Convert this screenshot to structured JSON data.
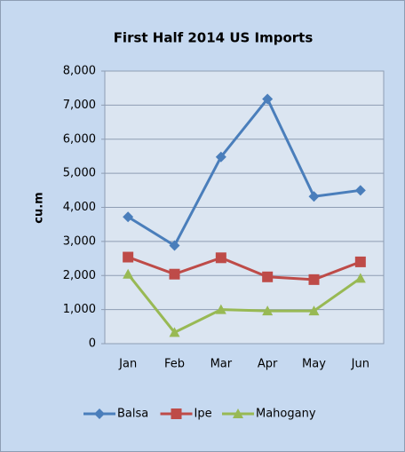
{
  "chart_data": {
    "type": "line",
    "title": "First Half 2014 US Imports",
    "y_label": "cu.m",
    "categories": [
      "Jan",
      "Feb",
      "Mar",
      "Apr",
      "May",
      "Jun"
    ],
    "series": [
      {
        "name": "Balsa",
        "color": "#4a7ebb",
        "marker": "diamond",
        "values": [
          3720,
          2880,
          5480,
          7180,
          4320,
          4500
        ]
      },
      {
        "name": "Ipe",
        "color": "#be4b48",
        "marker": "square",
        "values": [
          2540,
          2040,
          2520,
          1960,
          1880,
          2400
        ]
      },
      {
        "name": "Mahogany",
        "color": "#98b954",
        "marker": "triangle",
        "values": [
          2040,
          330,
          1000,
          960,
          960,
          1920
        ]
      }
    ],
    "ylim": [
      0,
      8000
    ],
    "yticks": [
      0,
      {
        "value": 1000,
        "label": "1,000"
      },
      {
        "value": 2000,
        "label": "2,000"
      },
      {
        "value": 3000,
        "label": "3,000"
      },
      {
        "value": 4000,
        "label": "4,000"
      },
      {
        "value": 5000,
        "label": "5,000"
      },
      {
        "value": 6000,
        "label": "6,000"
      },
      {
        "value": 7000,
        "label": "7,000"
      },
      {
        "value": 8000,
        "label": "8,000"
      }
    ],
    "grid": true,
    "legend": "bottom"
  }
}
